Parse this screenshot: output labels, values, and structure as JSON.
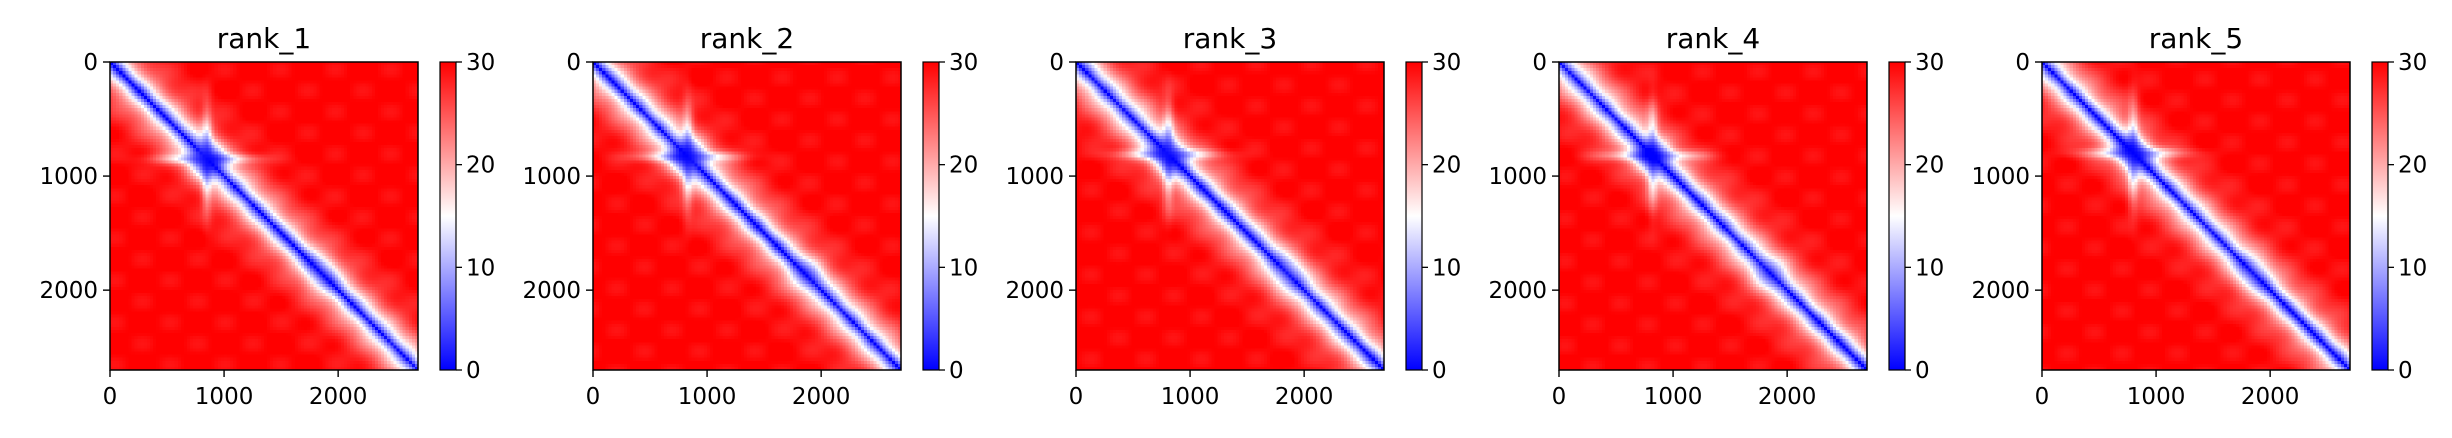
{
  "colormap": {
    "low": "#0000ff",
    "mid": "#ffffff",
    "high": "#ff0000"
  },
  "chart_data": [
    {
      "type": "heatmap",
      "title": "rank_1",
      "xlim": [
        0,
        2700
      ],
      "ylim": [
        2700,
        0
      ],
      "clim": [
        0,
        30
      ],
      "xticks": [
        0,
        1000,
        2000
      ],
      "yticks": [
        0,
        1000,
        2000
      ],
      "cbar_ticks": [
        0,
        10,
        20,
        30
      ],
      "xtick_labels": [
        "0",
        "1000",
        "2000"
      ],
      "ytick_labels": [
        "0",
        "1000",
        "2000"
      ],
      "cbar_labels": [
        "0",
        "10",
        "20",
        "30"
      ],
      "features": {
        "domain_center": 850,
        "domain_halfwidth": 130,
        "secondary_center": 1850,
        "band_width": 170,
        "background": 30
      }
    },
    {
      "type": "heatmap",
      "title": "rank_2",
      "xlim": [
        0,
        2700
      ],
      "ylim": [
        2700,
        0
      ],
      "clim": [
        0,
        30
      ],
      "xticks": [
        0,
        1000,
        2000
      ],
      "yticks": [
        0,
        1000,
        2000
      ],
      "cbar_ticks": [
        0,
        10,
        20,
        30
      ],
      "xtick_labels": [
        "0",
        "1000",
        "2000"
      ],
      "ytick_labels": [
        "0",
        "1000",
        "2000"
      ],
      "cbar_labels": [
        "0",
        "10",
        "20",
        "30"
      ],
      "features": {
        "domain_center": 830,
        "domain_halfwidth": 130,
        "secondary_center": 1880,
        "band_width": 175,
        "background": 30
      }
    },
    {
      "type": "heatmap",
      "title": "rank_3",
      "xlim": [
        0,
        2700
      ],
      "ylim": [
        2700,
        0
      ],
      "clim": [
        0,
        30
      ],
      "xticks": [
        0,
        1000,
        2000
      ],
      "yticks": [
        0,
        1000,
        2000
      ],
      "cbar_ticks": [
        0,
        10,
        20,
        30
      ],
      "xtick_labels": [
        "0",
        "1000",
        "2000"
      ],
      "ytick_labels": [
        "0",
        "1000",
        "2000"
      ],
      "cbar_labels": [
        "0",
        "10",
        "20",
        "30"
      ],
      "features": {
        "domain_center": 810,
        "domain_halfwidth": 120,
        "secondary_center": 1850,
        "band_width": 180,
        "background": 30
      }
    },
    {
      "type": "heatmap",
      "title": "rank_4",
      "xlim": [
        0,
        2700
      ],
      "ylim": [
        2700,
        0
      ],
      "clim": [
        0,
        30
      ],
      "xticks": [
        0,
        1000,
        2000
      ],
      "yticks": [
        0,
        1000,
        2000
      ],
      "cbar_ticks": [
        0,
        10,
        20,
        30
      ],
      "xtick_labels": [
        "0",
        "1000",
        "2000"
      ],
      "ytick_labels": [
        "0",
        "1000",
        "2000"
      ],
      "cbar_labels": [
        "0",
        "10",
        "20",
        "30"
      ],
      "features": {
        "domain_center": 820,
        "domain_halfwidth": 130,
        "secondary_center": 1850,
        "band_width": 175,
        "background": 30
      }
    },
    {
      "type": "heatmap",
      "title": "rank_5",
      "xlim": [
        0,
        2700
      ],
      "ylim": [
        2700,
        0
      ],
      "clim": [
        0,
        30
      ],
      "xticks": [
        0,
        1000,
        2000
      ],
      "yticks": [
        0,
        1000,
        2000
      ],
      "cbar_ticks": [
        0,
        10,
        20,
        30
      ],
      "xtick_labels": [
        "0",
        "1000",
        "2000"
      ],
      "ytick_labels": [
        "0",
        "1000",
        "2000"
      ],
      "cbar_labels": [
        "0",
        "10",
        "20",
        "30"
      ],
      "features": {
        "domain_center": 800,
        "domain_halfwidth": 120,
        "secondary_center": 1850,
        "band_width": 170,
        "background": 30
      }
    }
  ]
}
